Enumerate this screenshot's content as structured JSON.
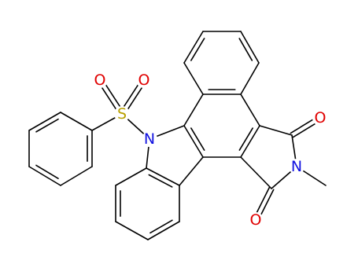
{
  "atom_labels": [
    "O",
    "O",
    "S",
    "N",
    "O",
    "N",
    "O"
  ]
}
